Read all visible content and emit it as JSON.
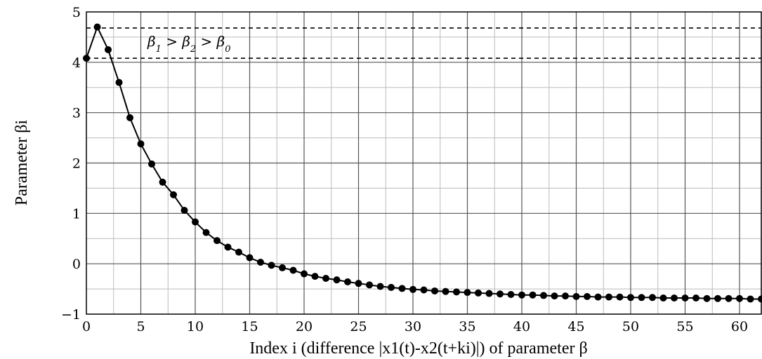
{
  "chart_data": {
    "type": "line",
    "title": "",
    "xlabel": "Index i (difference |x1(t)-x2(t+ki)|) of parameter β",
    "ylabel": "Parameter βi",
    "xlim": [
      0,
      62
    ],
    "ylim": [
      -1,
      5
    ],
    "x_ticks": [
      "0",
      "5",
      "10",
      "15",
      "20",
      "25",
      "30",
      "35",
      "40",
      "45",
      "50",
      "55",
      "60"
    ],
    "y_ticks": [
      "−1",
      "0",
      "1",
      "2",
      "3",
      "4",
      "5"
    ],
    "grid": true,
    "x": [
      0,
      1,
      2,
      3,
      4,
      5,
      6,
      7,
      8,
      9,
      10,
      11,
      12,
      13,
      14,
      15,
      16,
      17,
      18,
      19,
      20,
      21,
      22,
      23,
      24,
      25,
      26,
      27,
      28,
      29,
      30,
      31,
      32,
      33,
      34,
      35,
      36,
      37,
      38,
      39,
      40,
      41,
      42,
      43,
      44,
      45,
      46,
      47,
      48,
      49,
      50,
      51,
      52,
      53,
      54,
      55,
      56,
      57,
      58,
      59,
      60,
      61,
      62
    ],
    "series": [
      {
        "values": [
          4.08,
          4.7,
          4.25,
          3.6,
          2.9,
          2.38,
          1.98,
          1.62,
          1.37,
          1.06,
          0.83,
          0.62,
          0.46,
          0.33,
          0.23,
          0.12,
          0.03,
          -0.03,
          -0.08,
          -0.13,
          -0.2,
          -0.25,
          -0.29,
          -0.32,
          -0.36,
          -0.39,
          -0.42,
          -0.45,
          -0.47,
          -0.49,
          -0.51,
          -0.52,
          -0.54,
          -0.55,
          -0.56,
          -0.57,
          -0.58,
          -0.59,
          -0.6,
          -0.61,
          -0.62,
          -0.62,
          -0.63,
          -0.64,
          -0.64,
          -0.65,
          -0.65,
          -0.66,
          -0.66,
          -0.66,
          -0.67,
          -0.67,
          -0.67,
          -0.68,
          -0.68,
          -0.68,
          -0.68,
          -0.69,
          -0.69,
          -0.69,
          -0.69,
          -0.7,
          -0.7
        ]
      }
    ],
    "reference_lines": [
      {
        "y": 4.08,
        "style": "dashed"
      },
      {
        "y": 4.68,
        "style": "dashed"
      }
    ],
    "annotation": {
      "b1": "β",
      "s1": "1",
      "gt1": " > ",
      "b2": "β",
      "s2": "2",
      "gt2": " > ",
      "b0": "β",
      "s0": "0"
    },
    "line_color": "#000000",
    "grid_major_color": "#555555",
    "grid_minor_color": "#bbbbbb"
  }
}
